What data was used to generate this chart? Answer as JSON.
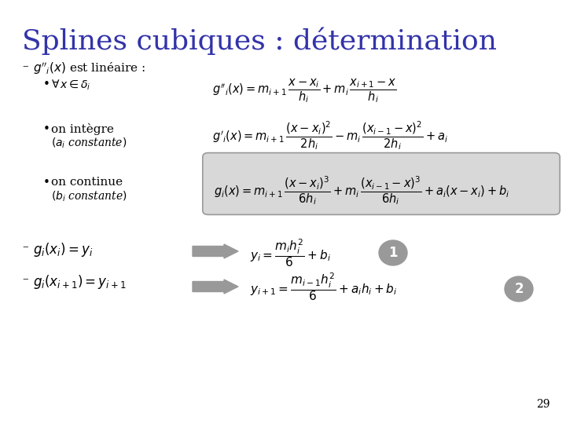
{
  "title": "Splines cubiques : détermination",
  "title_color": "#3333aa",
  "title_fontsize": 26,
  "background_color": "#ffffff",
  "text_color": "#000000",
  "page_number": "29",
  "bullet_color": "#000000",
  "formula_box_facecolor": "#d8d8d8",
  "formula_box_edgecolor": "#999999",
  "circle1_color": "#999999",
  "circle2_color": "#999999",
  "arrow_color": "#999999"
}
